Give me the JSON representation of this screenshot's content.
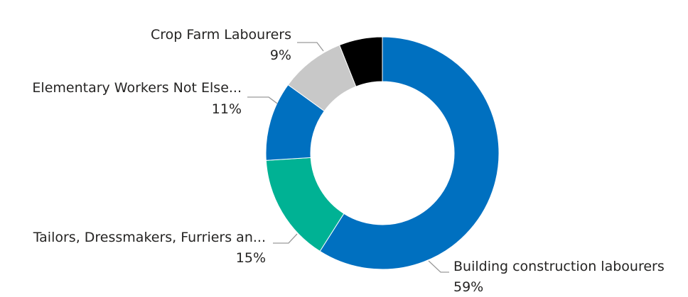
{
  "chart_data": {
    "type": "pie",
    "donut": true,
    "title": "",
    "legend": "none",
    "slices": [
      {
        "name": "Building construction labourers",
        "value": 59,
        "label": "59%",
        "color": "#0070C0"
      },
      {
        "name": "Tailors, Dressmakers, Furriers an...",
        "value": 15,
        "label": "15%",
        "color": "#00B294"
      },
      {
        "name": "Elementary Workers Not Else...",
        "value": 11,
        "label": "11%",
        "color": "#0070C0"
      },
      {
        "name": "Crop Farm Labourers",
        "value": 9,
        "label": "9%",
        "color": "#C8C8C8"
      },
      {
        "name": "",
        "value": 6,
        "label": "",
        "color": "#000000"
      }
    ]
  }
}
